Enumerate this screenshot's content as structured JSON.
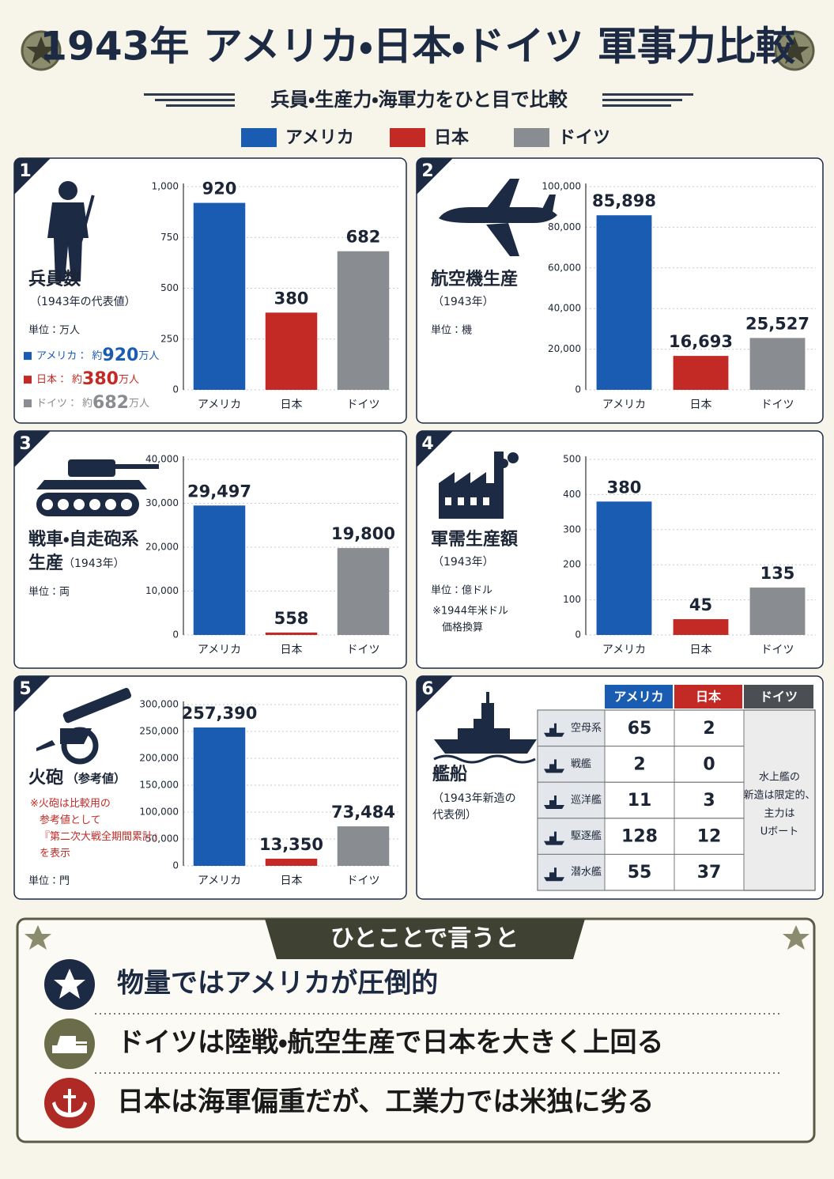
{
  "header": {
    "title": "1943年 アメリカ・日本・ドイツ 軍事力比較",
    "subtitle": "兵員・生産力・海軍力をひと目で比較"
  },
  "legend": [
    {
      "name": "アメリカ",
      "color": "#1b5cb3"
    },
    {
      "name": "日本",
      "color": "#c42a25"
    },
    {
      "name": "ドイツ",
      "color": "#898c90"
    }
  ],
  "chart_data": [
    {
      "type": "bar",
      "number": 1,
      "title": "兵員数",
      "subtitle": "（1943年の代表値）",
      "unit": "単位：万人",
      "categories": [
        "アメリカ",
        "日本",
        "ドイツ"
      ],
      "values": [
        920,
        380,
        682
      ],
      "ylim": [
        0,
        1000
      ],
      "yticks": [
        0,
        250,
        500,
        750,
        {
          "value": 1000,
          "label": "1,000"
        }
      ],
      "grid": true,
      "value_notes": {
        "separator": "：",
        "prefix": "約",
        "suffix": "万人"
      }
    },
    {
      "type": "bar",
      "number": 2,
      "title": "航空機生産",
      "subtitle": "（1943年）",
      "unit": "単位：機",
      "categories": [
        "アメリカ",
        "日本",
        "ドイツ"
      ],
      "values": [
        85898,
        16693,
        25527
      ],
      "value_labels": [
        "85,898",
        "16,693",
        "25,527"
      ],
      "ylim": [
        0,
        100000
      ],
      "yticks": [
        0,
        {
          "value": 20000,
          "label": "20,000"
        },
        {
          "value": 40000,
          "label": "40,000"
        },
        {
          "value": 60000,
          "label": "60,000"
        },
        {
          "value": 80000,
          "label": "80,000"
        },
        {
          "value": 100000,
          "label": "100,000"
        }
      ],
      "grid": true
    },
    {
      "type": "bar",
      "number": 3,
      "title": [
        "戦車・自走砲系",
        "生産"
      ],
      "subtitle": "（1943年）",
      "unit": "単位：両",
      "categories": [
        "アメリカ",
        "日本",
        "ドイツ"
      ],
      "values": [
        29497,
        558,
        19800
      ],
      "value_labels": [
        "29,497",
        "558",
        "19,800"
      ],
      "ylim": [
        0,
        40000
      ],
      "yticks": [
        0,
        {
          "value": 10000,
          "label": "10,000"
        },
        {
          "value": 20000,
          "label": "20,000"
        },
        {
          "value": 30000,
          "label": "30,000"
        },
        {
          "value": 40000,
          "label": "40,000"
        }
      ],
      "grid": true
    },
    {
      "type": "bar",
      "number": 4,
      "title": "軍需生産額",
      "subtitle": "（1943年）",
      "unit": "単位：億ドル",
      "notes": [
        "※1944年米ドル",
        "価格換算"
      ],
      "categories": [
        "アメリカ",
        "日本",
        "ドイツ"
      ],
      "values": [
        380,
        45,
        135
      ],
      "ylim": [
        0,
        500
      ],
      "yticks": [
        0,
        100,
        200,
        300,
        400,
        500
      ],
      "grid": true
    },
    {
      "type": "bar",
      "number": 5,
      "title": "火砲",
      "subtitle": "（参考値）",
      "notes": [
        "※火砲は比較用の",
        "参考値として",
        "『第二次大戦全期間累計』",
        "を表示"
      ],
      "note_color": "#c42a25",
      "unit": "単位：門",
      "categories": [
        "アメリカ",
        "日本",
        "ドイツ"
      ],
      "values": [
        257390,
        13350,
        73484
      ],
      "value_labels": [
        "257,390",
        "13,350",
        "73,484"
      ],
      "ylim": [
        0,
        300000
      ],
      "yticks": [
        0,
        {
          "value": 50000,
          "label": "50,000"
        },
        {
          "value": 100000,
          "label": "100,000"
        },
        {
          "value": 150000,
          "label": "150,000"
        },
        {
          "value": 200000,
          "label": "200,000"
        },
        {
          "value": 250000,
          "label": "250,000"
        },
        {
          "value": 300000,
          "label": "300,000"
        }
      ],
      "grid": true
    }
  ],
  "ships": {
    "number": 6,
    "title": "艦船",
    "subtitle": [
      "（1943年新造の",
      "代表例）"
    ],
    "columns": [
      "アメリカ",
      "日本",
      "ドイツ"
    ],
    "rows": [
      {
        "label": "空母系",
        "values": [
          65,
          2
        ]
      },
      {
        "label": "戦艦",
        "values": [
          2,
          0
        ]
      },
      {
        "label": "巡洋艦",
        "values": [
          11,
          3
        ]
      },
      {
        "label": "駆逐艦",
        "values": [
          128,
          12
        ]
      },
      {
        "label": "潜水艦",
        "values": [
          55,
          37
        ]
      }
    ],
    "germany_note": [
      "水上艦の",
      "新造は限定的、",
      "主力は",
      "Uボート"
    ]
  },
  "summary": {
    "heading": "ひとことで言うと",
    "points": [
      "物量ではアメリカが圧倒的",
      "ドイツは陸戦・航空生産で日本を大きく上回る",
      "日本は海軍偏重だが、工業力では米独に劣る"
    ]
  }
}
